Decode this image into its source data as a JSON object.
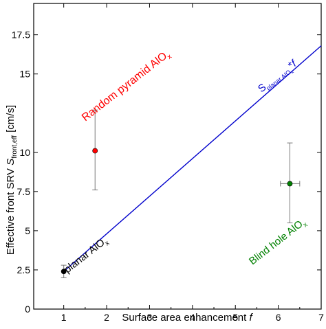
{
  "chart_data": {
    "type": "scatter",
    "xlabel": "Surface area enhancement f",
    "ylabel": "Effective front SRV S_front,eff [cm/s]",
    "xlim": [
      0.3,
      7
    ],
    "ylim": [
      0,
      19.5
    ],
    "x_ticks": [
      1,
      2,
      3,
      4,
      5,
      6,
      7
    ],
    "x_tick_labels": [
      "1",
      "2",
      "3",
      "4",
      "5",
      "6",
      "7"
    ],
    "y_ticks": [
      0,
      2.5,
      5,
      7.5,
      10,
      15,
      17.5
    ],
    "y_tick_labels": [
      "0",
      "2.5",
      "5",
      "7.5",
      "10",
      "15",
      "17.5"
    ],
    "grid": false,
    "series": [
      {
        "name": "planar AlOx",
        "color": "#000000",
        "points": [
          {
            "x": 1.0,
            "y": 2.4,
            "yerr_low": 2.0,
            "yerr_high": 2.8,
            "xerr_low": 1.0,
            "xerr_high": 1.0
          }
        ]
      },
      {
        "name": "Random pyramid AlOx",
        "color": "#ff0000",
        "points": [
          {
            "x": 1.73,
            "y": 10.1,
            "yerr_low": 7.6,
            "yerr_high": 12.7,
            "xerr_low": 1.73,
            "xerr_high": 1.73
          }
        ]
      },
      {
        "name": "Blind hole AlOx",
        "color": "#008000",
        "points": [
          {
            "x": 6.27,
            "y": 8.0,
            "yerr_low": 5.5,
            "yerr_high": 10.6,
            "xerr_low": 6.05,
            "xerr_high": 6.5
          }
        ]
      }
    ],
    "lines": [
      {
        "name": "S_planar,AlOx*f",
        "color": "#0000cc",
        "x": [
          1,
          7
        ],
        "y": [
          2.4,
          16.8
        ]
      }
    ],
    "annotations": [
      {
        "text": "Random pyramid AlOx",
        "color": "#ff0000"
      },
      {
        "text": "planar AlOx",
        "color": "#000000"
      },
      {
        "text": "Blind hole AlOx",
        "color": "#008000"
      },
      {
        "text": "S_planar,AlOx*f",
        "color": "#0000cc"
      }
    ]
  }
}
